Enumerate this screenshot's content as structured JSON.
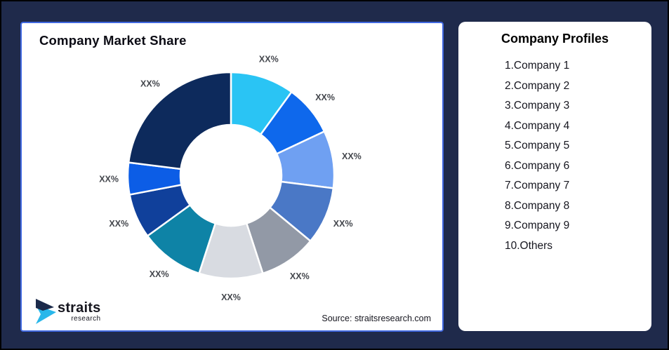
{
  "frame": {
    "background_color": "#1F2A4B",
    "outer_border_color": "#000000"
  },
  "chart_card": {
    "title": "Company Market Share",
    "source": "Source: straitsresearch.com",
    "border_color": "#4169E1",
    "logo": {
      "brand": "straits",
      "subtitle": "research",
      "mark_navy": "#1B2A4A",
      "mark_cyan": "#29B7EA"
    }
  },
  "profiles": {
    "title": "Company Profiles",
    "items": [
      "1.Company 1",
      "2.Company 2",
      "3.Company 3",
      "4.Company 4",
      "5.Company 5",
      "6.Company 6",
      "7.Company 7",
      "8.Company 8",
      "9.Company 9",
      "10.Others"
    ]
  },
  "chart_data": {
    "type": "pie",
    "subtype": "donut",
    "title": "Company Market Share",
    "categories": [
      "Company 1",
      "Company 2",
      "Company 3",
      "Company 4",
      "Company 5",
      "Company 6",
      "Company 7",
      "Company 8",
      "Company 9",
      "Others"
    ],
    "slice_labels": [
      "XX%",
      "XX%",
      "XX%",
      "XX%",
      "XX%",
      "XX%",
      "XX%",
      "XX%",
      "XX%",
      "XX%"
    ],
    "values_est_pct": [
      10,
      8,
      9,
      9,
      9,
      10,
      10,
      7,
      5,
      23
    ],
    "colors": [
      "#2AC4F4",
      "#0E68EC",
      "#6FA0F2",
      "#4A78C6",
      "#9299A6",
      "#D8DBE1",
      "#0E83A6",
      "#10409B",
      "#0C5DE6",
      "#0D2A5C"
    ],
    "start_angle_deg": 0,
    "clockwise": true,
    "inner_radius_ratio": 0.49,
    "separator_color": "#FFFFFF",
    "label_color": "#44474D",
    "legend": "none",
    "source": "Source: straitsresearch.com"
  }
}
